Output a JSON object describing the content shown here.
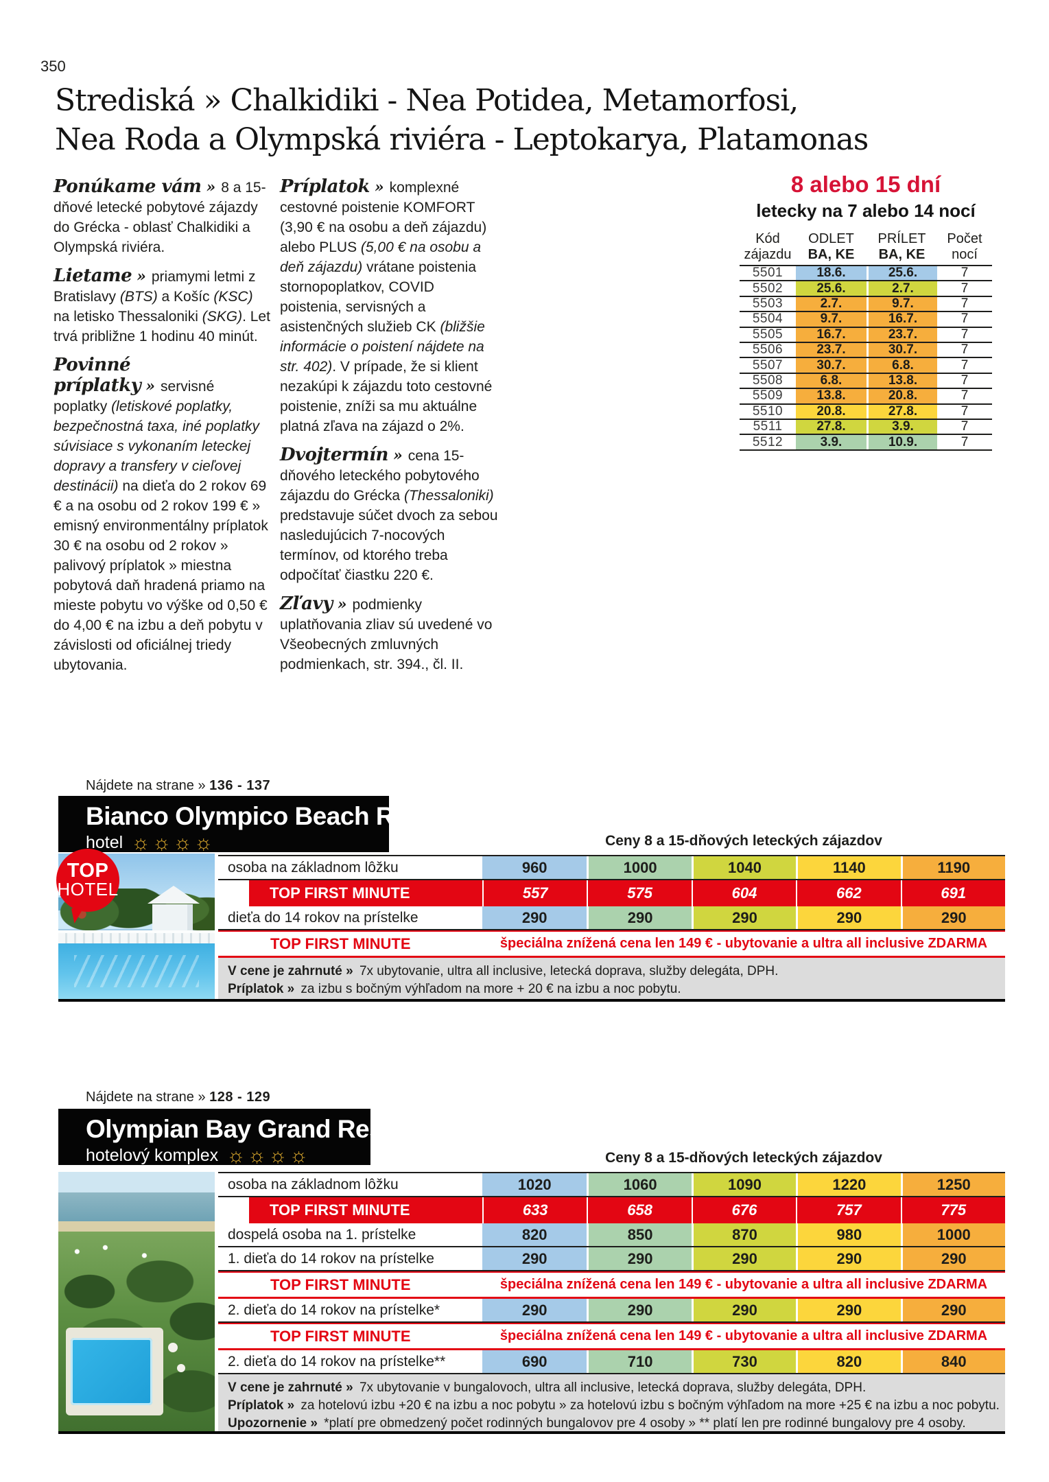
{
  "page": {
    "number": "350",
    "title1": "Strediská » Chalkidiki - Nea Potidea, Metamorfosi,",
    "title2": "Nea Roda a Olympská riviéra - Leptokarya, Platamonas"
  },
  "intro": {
    "sep": "»",
    "col1": [
      {
        "heading": "Ponúkame vám",
        "body": [
          {
            "t": "8 a 15-dňové letecké pobytové zájazdy do Grécka - oblasť Chalkidiki a Olympská riviéra."
          }
        ]
      },
      {
        "heading": "Lietame",
        "body": [
          {
            "t": "priamymi letmi z Bratislavy "
          },
          {
            "t": "(BTS)",
            "i": 1
          },
          {
            "t": " a Košíc "
          },
          {
            "t": "(KSC)",
            "i": 1
          },
          {
            "t": " na letisko Thessaloniki "
          },
          {
            "t": "(SKG)",
            "i": 1
          },
          {
            "t": ". Let trvá približne 1 hodinu 40 minút."
          }
        ]
      },
      {
        "heading": "Povinné príplatky",
        "body": [
          {
            "t": "servisné poplatky "
          },
          {
            "t": "(letiskové poplatky, bezpečnostná taxa, iné poplatky súvisiace s vykonaním leteckej dopravy a transfery v cieľovej destinácii)",
            "i": 1
          },
          {
            "t": " na dieťa do 2 rokov 69 € a na osobu od 2 rokov 199 € » emisný environmentálny príplatok 30 € na osobu od 2 rokov » palivový príplatok » miestna pobytová daň hradená priamo na mieste pobytu vo výške od 0,50 € do 4,00 € na izbu a deň pobytu v závislosti od oficiálnej triedy ubytovania."
          }
        ]
      }
    ],
    "col2": [
      {
        "heading": "Príplatok",
        "body": [
          {
            "t": "komplexné cestovné poistenie KOMFORT (3,90 € na osobu a deň zájazdu) alebo PLUS "
          },
          {
            "t": "(5,00 € na osobu a deň zájazdu)",
            "i": 1
          },
          {
            "t": " vrátane poistenia stornopoplatkov, COVID poistenia, servisných a asistenčných služieb CK "
          },
          {
            "t": "(bližšie informácie o poistení nájdete na str. 402)",
            "i": 1
          },
          {
            "t": ". V prípade, že si klient nezakúpi k zájazdu toto cestovné poistenie, zníži sa mu aktuálne platná zľava na zájazd o 2%."
          }
        ]
      },
      {
        "heading": "Dvojtermín",
        "body": [
          {
            "t": "cena 15-dňového leteckého pobytového zájazdu do Grécka "
          },
          {
            "t": "(Thessaloniki)",
            "i": 1
          },
          {
            "t": " predstavuje súčet dvoch za sebou nasledujúcich 7-nocových termínov, od ktorého treba odpočítať čiastku 220 €."
          }
        ]
      },
      {
        "heading": "Zľavy",
        "body": [
          {
            "t": "podmienky uplatňovania zliav sú uvedené vo Všeobecných zmluvných podmienkach, str. 394., čl. II."
          }
        ]
      }
    ]
  },
  "colors": {
    "blue": "#a5cae8",
    "green": "#abd2ad",
    "lime": "#d0d63f",
    "yellow": "#fcd63c",
    "orange": "#f6ae3d",
    "red": "#e30613",
    "title_red": "#d61336",
    "gold": "#d8a62c",
    "footer_gray": "#dcdcdc"
  },
  "price_columns": [
    "blue",
    "green",
    "lime",
    "yellow",
    "orange"
  ],
  "flight_table": {
    "title": "8 alebo 15 dní",
    "subtitle": "letecky na 7 alebo 14 nocí",
    "col_headers": {
      "code": [
        "Kód",
        "zájazdu"
      ],
      "odlet": [
        "ODLET",
        "BA, KE"
      ],
      "prilet": [
        "PRÍLET",
        "BA, KE"
      ],
      "nights": [
        "Počet",
        "nocí"
      ]
    },
    "rows": [
      {
        "code": "5501",
        "odlet": "18.6.",
        "prilet": "25.6.",
        "nights": "7",
        "color": "blue"
      },
      {
        "code": "5502",
        "odlet": "25.6.",
        "prilet": "2.7.",
        "nights": "7",
        "color": "lime"
      },
      {
        "code": "5503",
        "odlet": "2.7.",
        "prilet": "9.7.",
        "nights": "7",
        "color": "orange"
      },
      {
        "code": "5504",
        "odlet": "9.7.",
        "prilet": "16.7.",
        "nights": "7",
        "color": "orange"
      },
      {
        "code": "5505",
        "odlet": "16.7.",
        "prilet": "23.7.",
        "nights": "7",
        "color": "orange"
      },
      {
        "code": "5506",
        "odlet": "23.7.",
        "prilet": "30.7.",
        "nights": "7",
        "color": "orange"
      },
      {
        "code": "5507",
        "odlet": "30.7.",
        "prilet": "6.8.",
        "nights": "7",
        "color": "orange"
      },
      {
        "code": "5508",
        "odlet": "6.8.",
        "prilet": "13.8.",
        "nights": "7",
        "color": "orange"
      },
      {
        "code": "5509",
        "odlet": "13.8.",
        "prilet": "20.8.",
        "nights": "7",
        "color": "orange"
      },
      {
        "code": "5510",
        "odlet": "20.8.",
        "prilet": "27.8.",
        "nights": "7",
        "color": "yellow"
      },
      {
        "code": "5511",
        "odlet": "27.8.",
        "prilet": "3.9.",
        "nights": "7",
        "color": "lime"
      },
      {
        "code": "5512",
        "odlet": "3.9.",
        "prilet": "10.9.",
        "nights": "7",
        "color": "green"
      }
    ]
  },
  "hotels": [
    {
      "pageref_label": "Nájdete na strane »",
      "pageref": "136 - 137",
      "name": "Bianco Olympico Beach Resort",
      "category": "hotel",
      "stars": 4,
      "badge": [
        "TOP",
        "HOTEL"
      ],
      "prices_title": "Ceny 8 a 15-dňových leteckých zájazdov",
      "rows": [
        {
          "type": "price",
          "label": "osoba na základnom lôžku",
          "values": [
            "960",
            "1000",
            "1040",
            "1140",
            "1190"
          ]
        },
        {
          "type": "tfm",
          "label": "TOP FIRST MINUTE",
          "values": [
            "557",
            "575",
            "604",
            "662",
            "691"
          ]
        },
        {
          "type": "price",
          "label": "dieťa do 14 rokov na prístelke",
          "values": [
            "290",
            "290",
            "290",
            "290",
            "290"
          ]
        },
        {
          "type": "special",
          "label": "TOP FIRST MINUTE",
          "text": "špeciálna znížená cena len 149 € - ubytovanie a ultra all inclusive ZDARMA"
        }
      ],
      "footnotes": [
        {
          "label": "V cene je zahrnuté »",
          "text": "7x ubytovanie, ultra all inclusive, letecká doprava, služby delegáta, DPH."
        },
        {
          "label": "Príplatok »",
          "text": "za izbu s bočným výhľadom na more + 20 € na izbu a noc pobytu."
        }
      ]
    },
    {
      "pageref_label": "Nájdete na strane »",
      "pageref": "128 - 129",
      "name": "Olympian Bay Grand Resort",
      "category": "hotelový komplex",
      "stars": 4,
      "prices_title": "Ceny 8 a 15-dňových leteckých zájazdov",
      "rows": [
        {
          "type": "price",
          "label": "osoba na základnom lôžku",
          "values": [
            "1020",
            "1060",
            "1090",
            "1220",
            "1250"
          ]
        },
        {
          "type": "tfm",
          "label": "TOP FIRST MINUTE",
          "values": [
            "633",
            "658",
            "676",
            "757",
            "775"
          ]
        },
        {
          "type": "price",
          "label": "dospelá osoba na 1. prístelke",
          "values": [
            "820",
            "850",
            "870",
            "980",
            "1000"
          ]
        },
        {
          "type": "price",
          "label": "1. dieťa do 14 rokov na prístelke",
          "values": [
            "290",
            "290",
            "290",
            "290",
            "290"
          ]
        },
        {
          "type": "special",
          "label": "TOP FIRST MINUTE",
          "text": "špeciálna znížená cena len 149 € - ubytovanie a ultra all inclusive ZDARMA"
        },
        {
          "type": "price",
          "label": "2. dieťa do 14 rokov na prístelke*",
          "values": [
            "290",
            "290",
            "290",
            "290",
            "290"
          ]
        },
        {
          "type": "special",
          "label": "TOP FIRST MINUTE",
          "text": "špeciálna znížená cena len 149 € - ubytovanie a ultra all inclusive ZDARMA"
        },
        {
          "type": "price",
          "label": "2. dieťa do 14 rokov na prístelke**",
          "values": [
            "690",
            "710",
            "730",
            "820",
            "840"
          ]
        }
      ],
      "footnotes": [
        {
          "label": "V cene je zahrnuté »",
          "text": "7x ubytovanie v bungalovoch, ultra all inclusive, letecká doprava, služby delegáta, DPH."
        },
        {
          "label": "Príplatok »",
          "text": "za hotelovú izbu +20 € na izbu a noc pobytu » za hotelovú izbu s bočným výhľadom na more +25 € na izbu a noc pobytu."
        },
        {
          "label": "Upozornenie »",
          "text": "*platí pre obmedzený počet rodinných bungalovov pre 4 osoby » ** platí len pre rodinné bungalovy pre 4 osoby."
        }
      ]
    }
  ]
}
